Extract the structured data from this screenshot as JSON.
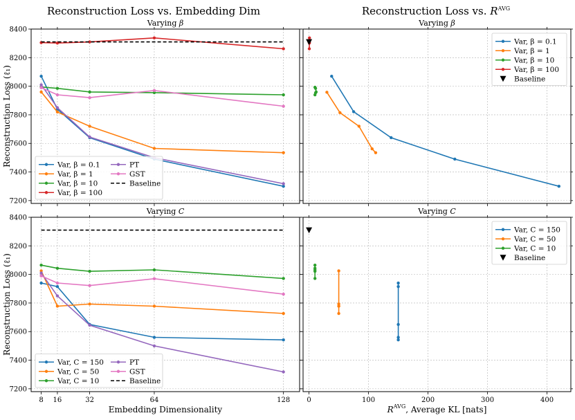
{
  "figure": {
    "left_title": "Reconstruction Loss vs. Embedding Dim",
    "right_title_prefix": "Reconstruction Loss vs. ",
    "right_title_r": "R",
    "right_title_sup": "AVG"
  },
  "colors": {
    "blue": "#1f77b4",
    "orange": "#ff7f0e",
    "green": "#2ca02c",
    "red": "#d62728",
    "purple": "#9467bd",
    "pink": "#e377c2",
    "black": "#000000"
  },
  "chart_data": [
    {
      "id": "dim-beta",
      "type": "line",
      "subtitle_prefix": "Varying ",
      "subtitle_var": "β",
      "xlabel": "",
      "ylabel": "Reconstruction Loss (ℓ₁)",
      "xlim": [
        3,
        136
      ],
      "ylim": [
        7180,
        8400
      ],
      "xticks": [
        8,
        16,
        32,
        64,
        128
      ],
      "yticks": [
        7200,
        7400,
        7600,
        7800,
        8000,
        8200,
        8400
      ],
      "show_xtick_labels": false,
      "show_ytick_labels": true,
      "grid": true,
      "legend_position": "lower-left",
      "legend_columns": 2,
      "x": [
        8,
        16,
        32,
        64,
        128
      ],
      "series": [
        {
          "name": "Var, β = 0.1",
          "color": "blue",
          "values": [
            8070,
            7840,
            7640,
            7490,
            7300
          ]
        },
        {
          "name": "Var, β = 1",
          "color": "orange",
          "values": [
            7960,
            7820,
            7720,
            7565,
            7535
          ]
        },
        {
          "name": "Var, β = 10",
          "color": "green",
          "values": [
            7995,
            7985,
            7960,
            7955,
            7940
          ]
        },
        {
          "name": "Var, β = 100",
          "color": "red",
          "values": [
            8305,
            8302,
            8310,
            8338,
            8262
          ]
        },
        {
          "name": "PT",
          "color": "purple",
          "values": [
            8010,
            7850,
            7645,
            7500,
            7318
          ]
        },
        {
          "name": "GST",
          "color": "pink",
          "values": [
            7990,
            7940,
            7920,
            7970,
            7860
          ]
        },
        {
          "name": "Baseline",
          "color": "black",
          "dashed": true,
          "values": [
            8310,
            8310,
            8310,
            8310,
            8310
          ]
        }
      ]
    },
    {
      "id": "kl-beta",
      "type": "line",
      "subtitle_prefix": "Varying ",
      "subtitle_var": "β",
      "xlabel": "",
      "ylabel": "",
      "xlim": [
        -10,
        440
      ],
      "ylim": [
        7180,
        8400
      ],
      "xticks": [
        0,
        100,
        200,
        300,
        400
      ],
      "yticks": [
        7200,
        7400,
        7600,
        7800,
        8000,
        8200,
        8400
      ],
      "show_xtick_labels": false,
      "show_ytick_labels": false,
      "grid": true,
      "legend_position": "upper-right",
      "legend_columns": 1,
      "series": [
        {
          "name": "Var, β = 0.1",
          "color": "blue",
          "x": [
            38,
            75,
            138,
            245,
            420
          ],
          "values": [
            8070,
            7822,
            7640,
            7490,
            7300
          ]
        },
        {
          "name": "Var, β = 1",
          "color": "orange",
          "x": [
            30,
            52,
            84,
            106,
            112
          ],
          "values": [
            7958,
            7815,
            7720,
            7562,
            7535
          ]
        },
        {
          "name": "Var, β = 10",
          "color": "green",
          "x": [
            10,
            11,
            12,
            11,
            10
          ],
          "values": [
            7993,
            7985,
            7960,
            7954,
            7940
          ]
        },
        {
          "name": "Var, β = 100",
          "color": "red",
          "x": [
            0.5,
            0.6,
            0.5,
            0.7,
            0.5
          ],
          "values": [
            8305,
            8302,
            8310,
            8338,
            8262
          ]
        },
        {
          "name": "Baseline",
          "color": "black",
          "marker": "triangle",
          "x": [
            0
          ],
          "values": [
            8310
          ]
        }
      ]
    },
    {
      "id": "dim-c",
      "type": "line",
      "subtitle_prefix": "Varying ",
      "subtitle_var": "C",
      "xlabel": "Embedding Dimensionality",
      "ylabel": "Reconstruction Loss (ℓ₁)",
      "xlim": [
        3,
        136
      ],
      "ylim": [
        7180,
        8400
      ],
      "xticks": [
        8,
        16,
        32,
        64,
        128
      ],
      "yticks": [
        7200,
        7400,
        7600,
        7800,
        8000,
        8200,
        8400
      ],
      "show_xtick_labels": true,
      "show_ytick_labels": true,
      "grid": true,
      "legend_position": "lower-left",
      "legend_columns": 2,
      "x": [
        8,
        16,
        32,
        64,
        128
      ],
      "series": [
        {
          "name": "Var, C = 150",
          "color": "blue",
          "values": [
            7940,
            7915,
            7650,
            7560,
            7542
          ]
        },
        {
          "name": "Var, C = 50",
          "color": "orange",
          "values": [
            8025,
            7778,
            7793,
            7778,
            7727
          ]
        },
        {
          "name": "Var, C = 10",
          "color": "green",
          "values": [
            8065,
            8043,
            8022,
            8032,
            7972
          ]
        },
        {
          "name": "PT",
          "color": "purple",
          "values": [
            8010,
            7850,
            7645,
            7500,
            7318
          ]
        },
        {
          "name": "GST",
          "color": "pink",
          "values": [
            7990,
            7940,
            7922,
            7970,
            7862
          ]
        },
        {
          "name": "Baseline",
          "color": "black",
          "dashed": true,
          "values": [
            8310,
            8310,
            8310,
            8310,
            8310
          ]
        }
      ]
    },
    {
      "id": "kl-c",
      "type": "line",
      "subtitle_prefix": "Varying ",
      "subtitle_var": "C",
      "xlabel_prefix": "",
      "xlabel_r": "R",
      "xlabel_sup": "AVG",
      "xlabel_rest": ", Average KL [nats]",
      "ylabel": "",
      "xlim": [
        -10,
        440
      ],
      "ylim": [
        7180,
        8400
      ],
      "xticks": [
        0,
        100,
        200,
        300,
        400
      ],
      "yticks": [
        7200,
        7400,
        7600,
        7800,
        8000,
        8200,
        8400
      ],
      "show_xtick_labels": true,
      "show_ytick_labels": false,
      "grid": true,
      "legend_position": "upper-right",
      "legend_columns": 1,
      "series": [
        {
          "name": "Var, C = 150",
          "color": "blue",
          "x": [
            150,
            150,
            150,
            150,
            150
          ],
          "values": [
            7940,
            7915,
            7650,
            7560,
            7542
          ]
        },
        {
          "name": "Var, C = 50",
          "color": "orange",
          "x": [
            50,
            50,
            50,
            50,
            50
          ],
          "values": [
            8025,
            7778,
            7793,
            7778,
            7727
          ]
        },
        {
          "name": "Var, C = 10",
          "color": "green",
          "x": [
            10,
            10,
            10,
            10,
            10
          ],
          "values": [
            8065,
            8043,
            8022,
            8032,
            7972
          ]
        },
        {
          "name": "Baseline",
          "color": "black",
          "marker": "triangle",
          "x": [
            0
          ],
          "values": [
            8310
          ]
        }
      ]
    }
  ]
}
